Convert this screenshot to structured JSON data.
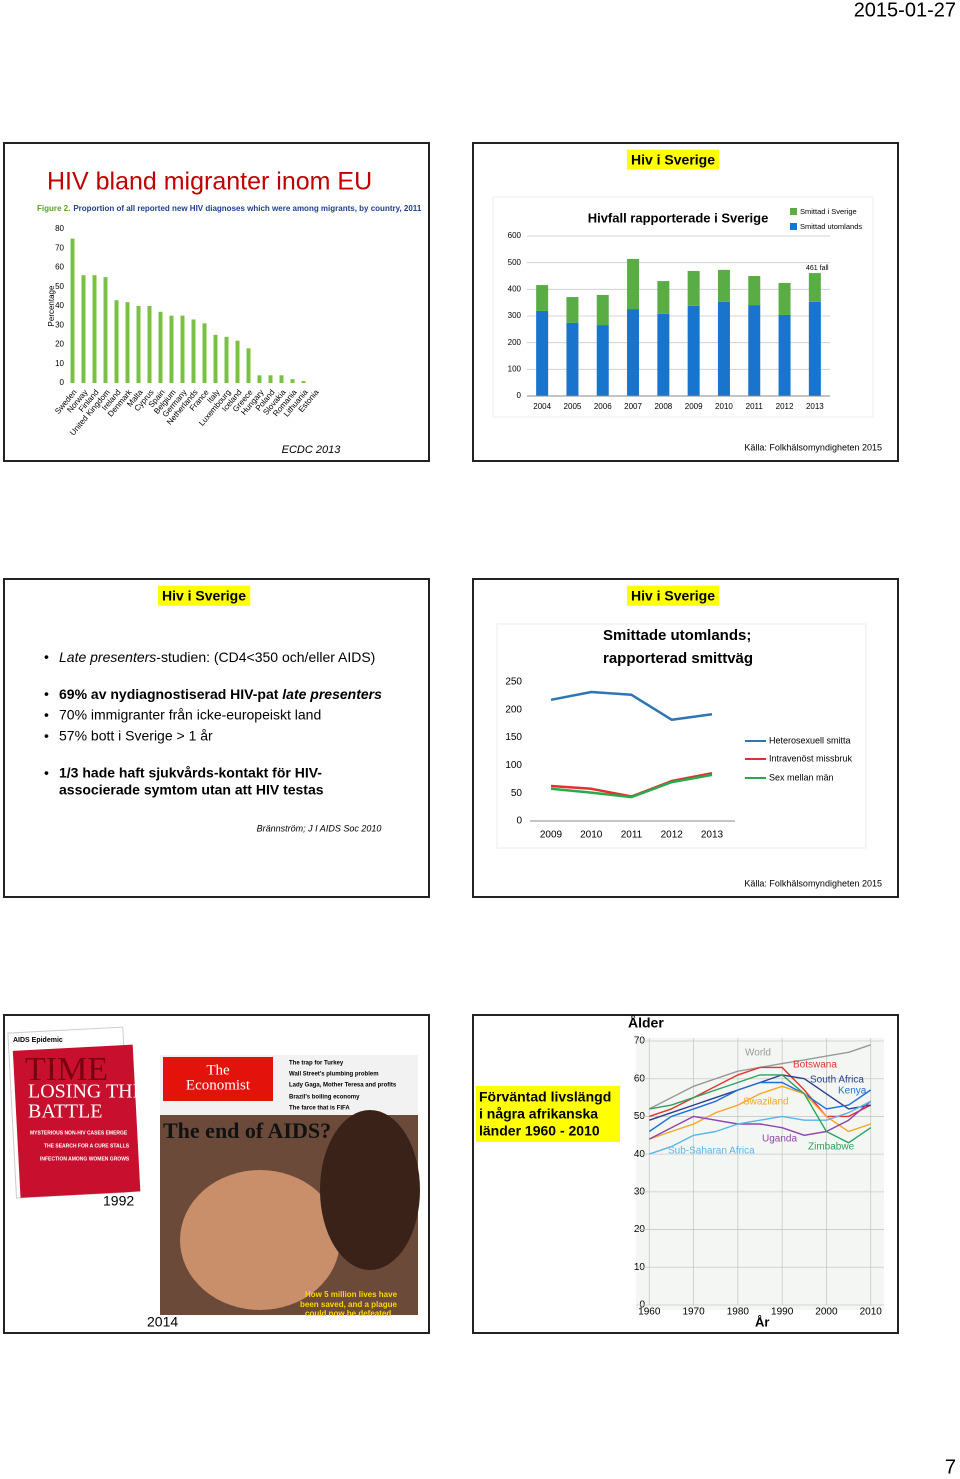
{
  "header": {
    "date": "2015-01-27"
  },
  "footer": {
    "page_number": "7"
  },
  "slides": [
    {
      "title": "HIV bland migranter inom EU",
      "chart_data": {
        "type": "bar",
        "title": [
          "Figure 2.",
          "Proportion of all reported new HIV diagnoses which were among migrants, by country, 2011"
        ],
        "ylabel": "Percentage",
        "categories": [
          "Sweden",
          "Norway",
          "Finland",
          "United Kingdom",
          "Ireland",
          "Denmark",
          "Malta",
          "Cyprus",
          "Spain",
          "Belgium",
          "Germany",
          "Netherlands",
          "France",
          "Italy",
          "Luxembourg",
          "Iceland",
          "Greece",
          "Hungary",
          "Poland",
          "Slovakia",
          "Romania",
          "Lithuania",
          "Estonia"
        ],
        "values": [
          75,
          56,
          56,
          55,
          43,
          42,
          40,
          40,
          37,
          35,
          35,
          33,
          31,
          25,
          24,
          22,
          18,
          4,
          4,
          4,
          2,
          1,
          0
        ],
        "color": "#7ac143",
        "ylim": [
          0,
          80
        ],
        "yticks": [
          0,
          10,
          20,
          30,
          40,
          50,
          60,
          70,
          80
        ],
        "grid": false
      },
      "source": "ECDC 2013"
    },
    {
      "label": "Hiv i Sverige",
      "chart_data": {
        "type": "stacked_bar",
        "title": "Hivfall rapporterade i Sverige",
        "categories": [
          "2004",
          "2005",
          "2006",
          "2007",
          "2008",
          "2009",
          "2010",
          "2011",
          "2012",
          "2013"
        ],
        "series": [
          {
            "name": "Smittad utomlands",
            "color": "#1874cd",
            "values": [
              319,
              274,
              266,
              326,
              308,
              338,
              353,
              341,
              304,
              353
            ]
          },
          {
            "name": "Smittad i Sverige",
            "color": "#5aad45",
            "values": [
              97,
              97,
              113,
              188,
              123,
              131,
              120,
              109,
              120,
              108
            ]
          }
        ],
        "annotation": "461 fall",
        "ylim": [
          0,
          600
        ],
        "yticks": [
          0,
          100,
          200,
          300,
          400,
          500,
          600
        ],
        "grid": true
      },
      "source": "Källa: Folkhälsomyndigheten 2015"
    },
    {
      "label": "Hiv i Sverige",
      "bullets": [
        [
          "Late presenters",
          "-studien: (CD4<350 och/eller AIDS)"
        ],
        [
          "69% av nydiagnostiserad HIV-pat ",
          "late presenters"
        ],
        [
          "70% immigranter från icke-europeiskt land"
        ],
        [
          "57% bott i Sverige > 1 år"
        ],
        [
          "1/3 hade haft sjukvårds-kontakt för HIV-",
          "associerade symtom utan att HIV testas"
        ]
      ],
      "source": "Brännström; J I AIDS Soc 2010"
    },
    {
      "label": "Hiv i Sverige",
      "chart_data": {
        "type": "line",
        "title": [
          "Smittade utomlands;",
          "rapporterad smittväg"
        ],
        "x": [
          2009,
          2010,
          2011,
          2012,
          2013
        ],
        "xlim": [
          2009,
          2013
        ],
        "series": [
          {
            "name": "Heterosexuell smitta",
            "color": "#2e75b6",
            "values": [
              218,
              232,
              227,
              182,
              192
            ]
          },
          {
            "name": "Intravenöst missbruk",
            "color": "#e03030",
            "values": [
              63,
              58,
              44,
              72,
              86
            ]
          },
          {
            "name": "Sex mellan män",
            "color": "#2aa84a",
            "values": [
              58,
              51,
              43,
              70,
              83
            ]
          }
        ],
        "ylim": [
          0,
          250
        ],
        "yticks": [
          0,
          50,
          100,
          150,
          200,
          250
        ],
        "grid": false
      },
      "source": "Källa: Folkhälsomyndigheten 2015"
    },
    {
      "covers": [
        {
          "texts": [
            "AIDS Epidemic",
            "TIME",
            "LOSING THE",
            "BATTLE",
            "MYSTERIOUS NON-HIV CASES EMERGE",
            "THE SEARCH FOR A CURE STALLS",
            "INFECTION AMONG WOMEN GROWS"
          ],
          "caption": "1992"
        },
        {
          "texts": [
            "The",
            "Economist",
            "The trap for Turkey",
            "Wall Street's plumbing problem",
            "Lady Gaga, Mother Teresa and profits",
            "Brazil's boiling economy",
            "The farce that is FIFA",
            "The end of AIDS?",
            "How 5 million lives have",
            "been saved, and a plague",
            "could now be defeated"
          ],
          "caption": "2014"
        }
      ]
    },
    {
      "label": [
        "Förväntad livslängd",
        "i några afrikanska",
        "länder 1960 - 2010"
      ],
      "chart_data": {
        "type": "line",
        "ylabel": "Ålder",
        "xlabel": "År",
        "x": [
          1960,
          1965,
          1970,
          1975,
          1980,
          1985,
          1990,
          1995,
          2000,
          2005,
          2010
        ],
        "xlim": [
          1957,
          2013
        ],
        "xticks": [
          1960,
          1970,
          1980,
          1990,
          2000,
          2010
        ],
        "series": [
          {
            "name": "World",
            "color": "#999999",
            "values": [
              52,
              55,
              58,
              60,
              62,
              63,
              64,
              65,
              66,
              67,
              69
            ]
          },
          {
            "name": "Botswana",
            "color": "#e2342c",
            "values": [
              50,
              52,
              55,
              58,
              61,
              63,
              63,
              57,
              50,
              50,
              53
            ]
          },
          {
            "name": "South Africa",
            "color": "#2b3f8c",
            "values": [
              49,
              51,
              53,
              55,
              57,
              59,
              61,
              60,
              56,
              52,
              53
            ]
          },
          {
            "name": "Kenya",
            "color": "#1f6fd6",
            "values": [
              46,
              50,
              52,
              54,
              57,
              59,
              59,
              56,
              52,
              53,
              57
            ]
          },
          {
            "name": "Swaziland",
            "color": "#f5a623",
            "values": [
              44,
              46,
              48,
              51,
              53,
              56,
              58,
              56,
              50,
              46,
              48
            ]
          },
          {
            "name": "Uganda",
            "color": "#8e44ad",
            "values": [
              44,
              47,
              50,
              49,
              48,
              48,
              47,
              45,
              46,
              49,
              54
            ]
          },
          {
            "name": "Sub-Saharan Africa",
            "color": "#5bb5e8",
            "values": [
              40,
              42,
              45,
              46,
              48,
              49,
              50,
              49,
              49,
              51,
              54
            ]
          },
          {
            "name": "Zimbabwe",
            "color": "#2ca25f",
            "values": [
              52,
              53,
              55,
              57,
              59,
              61,
              61,
              56,
              46,
              43,
              47
            ]
          }
        ],
        "ylim": [
          0,
          70
        ],
        "yticks": [
          0,
          10,
          20,
          30,
          40,
          50,
          60,
          70
        ],
        "grid": true
      }
    }
  ]
}
